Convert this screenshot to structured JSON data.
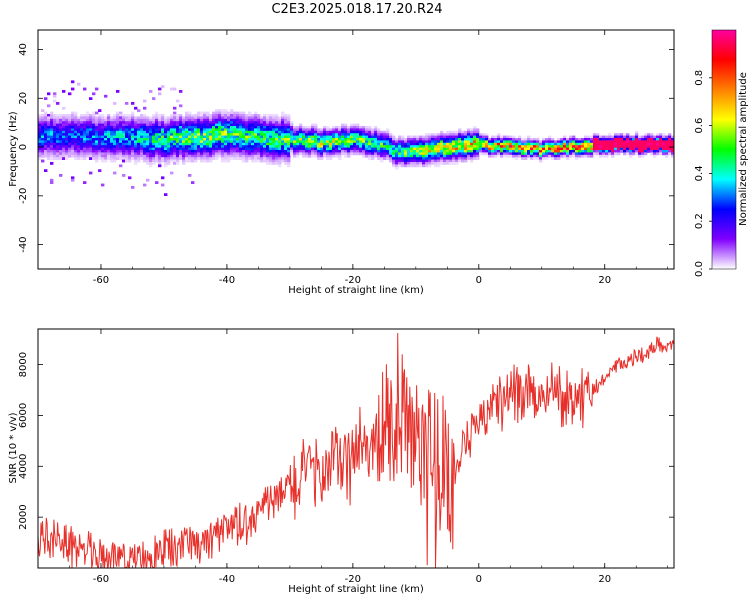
{
  "title": "C2E3.2025.018.17.20.R24",
  "chart_data": [
    {
      "type": "heatmap",
      "xlabel": "Height of straight line (km)",
      "ylabel": "Frequency (Hz)",
      "xlim": [
        -70,
        31
      ],
      "ylim": [
        -50,
        48
      ],
      "xticks": [
        -60,
        -40,
        -20,
        0,
        20
      ],
      "yticks": [
        -40,
        -20,
        0,
        20,
        40
      ],
      "colorbar": {
        "label": "Normalized spectral amplitude",
        "ticks": [
          "0.0",
          "0.2",
          "0.4",
          "0.6",
          "0.8"
        ],
        "tick_values": [
          0,
          0.2,
          0.4,
          0.6,
          0.8
        ],
        "range": [
          0,
          1
        ],
        "colormap": [
          "#ffffff",
          "#8000ff",
          "#0000ff",
          "#00ffff",
          "#00ff00",
          "#ffff00",
          "#ff8000",
          "#ff0000",
          "#ff00a0"
        ]
      },
      "ridge": {
        "x": [
          -70,
          -65,
          -60,
          -55,
          -50,
          -45,
          -40,
          -35,
          -30,
          -25,
          -20,
          -15,
          -13,
          -10,
          -5,
          0,
          5,
          10,
          15,
          20,
          25,
          31
        ],
        "frequency": [
          4,
          5,
          4,
          4,
          3,
          4,
          5,
          4,
          3,
          2,
          3,
          1,
          -2,
          -2,
          0,
          1,
          0,
          -1,
          0,
          1,
          1,
          1
        ],
        "amplitude": [
          0.35,
          0.3,
          0.35,
          0.4,
          0.5,
          0.55,
          0.55,
          0.5,
          0.55,
          0.6,
          0.55,
          0.5,
          0.5,
          0.6,
          0.7,
          0.75,
          0.8,
          0.8,
          0.85,
          0.9,
          0.95,
          1.0
        ]
      }
    },
    {
      "type": "line",
      "xlabel": "Height of straight line (km)",
      "ylabel": "SNR (10 * v/v)",
      "xlim": [
        -70,
        31
      ],
      "ylim": [
        0,
        9400
      ],
      "xticks": [
        -60,
        -40,
        -20,
        0,
        20
      ],
      "yticks": [
        2000,
        4000,
        6000,
        8000
      ],
      "color": "#e8302a",
      "series": [
        {
          "x": [
            -70,
            -67,
            -65,
            -62,
            -60,
            -57,
            -55,
            -52,
            -50,
            -47,
            -45,
            -42,
            -40,
            -37,
            -35,
            -32,
            -30,
            -28,
            -26,
            -24,
            -22,
            -20,
            -18,
            -16,
            -14,
            -12,
            -10,
            -8,
            -6,
            -4,
            -2,
            0,
            2,
            4,
            6,
            8,
            10,
            12,
            14,
            16,
            18,
            20,
            22,
            24,
            26,
            28,
            31
          ],
          "y": [
            1300,
            1200,
            900,
            600,
            400,
            250,
            250,
            500,
            700,
            800,
            900,
            1100,
            1400,
            1800,
            2300,
            2700,
            3200,
            3500,
            3800,
            3900,
            4100,
            4300,
            4700,
            5000,
            5100,
            5200,
            4800,
            4200,
            3900,
            3600,
            4600,
            5800,
            6400,
            6400,
            6800,
            7000,
            6700,
            7200,
            6600,
            6700,
            7000,
            7500,
            7900,
            8200,
            8400,
            8700,
            8900
          ]
        }
      ]
    }
  ]
}
